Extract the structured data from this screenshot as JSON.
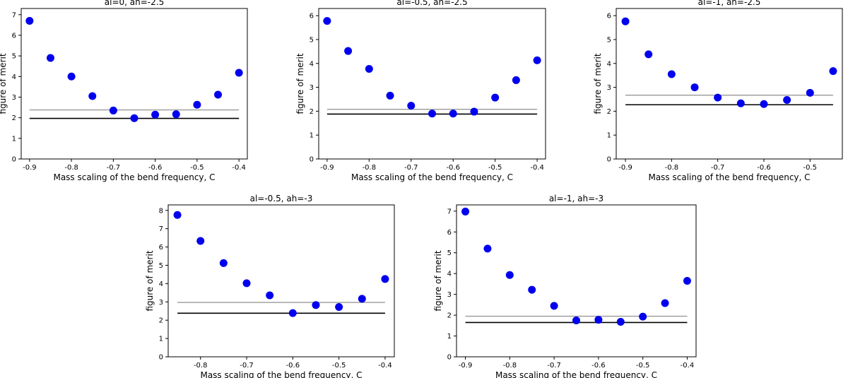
{
  "colors": {
    "point": "#0000ee",
    "black_line": "#000000",
    "gray_line": "#999999",
    "axes": "#000000"
  },
  "chart_data": [
    {
      "type": "scatter",
      "title": "al=0, ah=-2.5",
      "xlabel": "Mass scaling of the bend frequency, C",
      "ylabel": "figure of merit",
      "xlim": [
        -0.92,
        -0.38
      ],
      "ylim": [
        0,
        7.3
      ],
      "xticks": [
        -0.9,
        -0.8,
        -0.7,
        -0.6,
        -0.5,
        -0.4
      ],
      "xtick_labels": [
        "-0.9",
        "-0.8",
        "-0.7",
        "-0.6",
        "-0.5",
        "-0.4"
      ],
      "yticks": [
        0,
        1,
        2,
        3,
        4,
        5,
        6,
        7
      ],
      "ytick_labels": [
        "0",
        "1",
        "2",
        "3",
        "4",
        "5",
        "6",
        "7"
      ],
      "x": [
        -0.9,
        -0.85,
        -0.8,
        -0.75,
        -0.7,
        -0.65,
        -0.6,
        -0.55,
        -0.5,
        -0.45,
        -0.4
      ],
      "y": [
        6.7,
        4.9,
        4.0,
        3.05,
        2.35,
        1.98,
        2.15,
        2.17,
        2.63,
        3.12,
        4.18
      ],
      "hlines": [
        {
          "name": "black",
          "value": 1.97
        },
        {
          "name": "gray",
          "value": 2.38
        }
      ]
    },
    {
      "type": "scatter",
      "title": "al=-0.5, ah=-2.5",
      "xlabel": "Mass scaling of the bend frequency, C",
      "ylabel": "figure of merit",
      "xlim": [
        -0.92,
        -0.38
      ],
      "ylim": [
        0,
        6.3
      ],
      "xticks": [
        -0.9,
        -0.8,
        -0.7,
        -0.6,
        -0.5,
        -0.4
      ],
      "xtick_labels": [
        "-0.9",
        "-0.8",
        "-0.7",
        "-0.6",
        "-0.5",
        "-0.4"
      ],
      "yticks": [
        0,
        1,
        2,
        3,
        4,
        5,
        6
      ],
      "ytick_labels": [
        "0",
        "1",
        "2",
        "3",
        "4",
        "5",
        "6"
      ],
      "x": [
        -0.9,
        -0.85,
        -0.8,
        -0.75,
        -0.7,
        -0.65,
        -0.6,
        -0.55,
        -0.5,
        -0.45,
        -0.4
      ],
      "y": [
        5.78,
        4.52,
        3.77,
        2.65,
        2.23,
        1.9,
        1.9,
        1.98,
        2.57,
        3.3,
        4.13
      ],
      "hlines": [
        {
          "name": "black",
          "value": 1.88
        },
        {
          "name": "gray",
          "value": 2.08
        }
      ]
    },
    {
      "type": "scatter",
      "title": "al=-1, ah=-2.5",
      "xlabel": "Mass scaling of the bend frequency, C",
      "ylabel": "figure of merit",
      "xlim": [
        -0.92,
        -0.43
      ],
      "ylim": [
        0,
        6.3
      ],
      "xticks": [
        -0.9,
        -0.8,
        -0.7,
        -0.6,
        -0.5
      ],
      "xtick_labels": [
        "-0.9",
        "-0.8",
        "-0.7",
        "-0.6",
        "-0.5"
      ],
      "yticks": [
        0,
        1,
        2,
        3,
        4,
        5,
        6
      ],
      "ytick_labels": [
        "0",
        "1",
        "2",
        "3",
        "4",
        "5",
        "6"
      ],
      "x": [
        -0.9,
        -0.85,
        -0.8,
        -0.75,
        -0.7,
        -0.65,
        -0.6,
        -0.55,
        -0.5,
        -0.45
      ],
      "y": [
        5.76,
        4.38,
        3.55,
        3.0,
        2.57,
        2.33,
        2.3,
        2.47,
        2.77,
        3.68
      ],
      "hlines": [
        {
          "name": "black",
          "value": 2.27
        },
        {
          "name": "gray",
          "value": 2.67
        }
      ]
    },
    {
      "type": "scatter",
      "title": "al=-0.5, ah=-3",
      "xlabel": "Mass scaling of the bend frequency, C",
      "ylabel": "figure of merit",
      "xlim": [
        -0.87,
        -0.38
      ],
      "ylim": [
        0,
        8.3
      ],
      "xticks": [
        -0.8,
        -0.7,
        -0.6,
        -0.5,
        -0.4
      ],
      "xtick_labels": [
        "-0.8",
        "-0.7",
        "-0.6",
        "-0.5",
        "-0.4"
      ],
      "yticks": [
        0,
        1,
        2,
        3,
        4,
        5,
        6,
        7,
        8
      ],
      "ytick_labels": [
        "0",
        "1",
        "2",
        "3",
        "4",
        "5",
        "6",
        "7",
        "8"
      ],
      "x": [
        -0.85,
        -0.8,
        -0.75,
        -0.7,
        -0.65,
        -0.6,
        -0.55,
        -0.5,
        -0.45,
        -0.4
      ],
      "y": [
        7.75,
        6.33,
        5.12,
        4.02,
        3.36,
        2.39,
        2.83,
        2.72,
        3.17,
        4.25
      ],
      "hlines": [
        {
          "name": "black",
          "value": 2.38
        },
        {
          "name": "gray",
          "value": 2.97
        }
      ]
    },
    {
      "type": "scatter",
      "title": "al=-1, ah=-3",
      "xlabel": "Mass scaling of the bend frequency, C",
      "ylabel": "figure of merit",
      "xlim": [
        -0.92,
        -0.38
      ],
      "ylim": [
        0,
        7.3
      ],
      "xticks": [
        -0.9,
        -0.8,
        -0.7,
        -0.6,
        -0.5,
        -0.4
      ],
      "xtick_labels": [
        "-0.9",
        "-0.8",
        "-0.7",
        "-0.6",
        "-0.5",
        "-0.4"
      ],
      "yticks": [
        0,
        1,
        2,
        3,
        4,
        5,
        6,
        7
      ],
      "ytick_labels": [
        "0",
        "1",
        "2",
        "3",
        "4",
        "5",
        "6",
        "7"
      ],
      "x": [
        -0.9,
        -0.85,
        -0.8,
        -0.75,
        -0.7,
        -0.65,
        -0.6,
        -0.55,
        -0.5,
        -0.45,
        -0.4
      ],
      "y": [
        6.98,
        5.2,
        3.93,
        3.22,
        2.45,
        1.75,
        1.78,
        1.68,
        1.93,
        2.58,
        3.65
      ],
      "hlines": [
        {
          "name": "black",
          "value": 1.65
        },
        {
          "name": "gray",
          "value": 1.95
        }
      ]
    }
  ]
}
